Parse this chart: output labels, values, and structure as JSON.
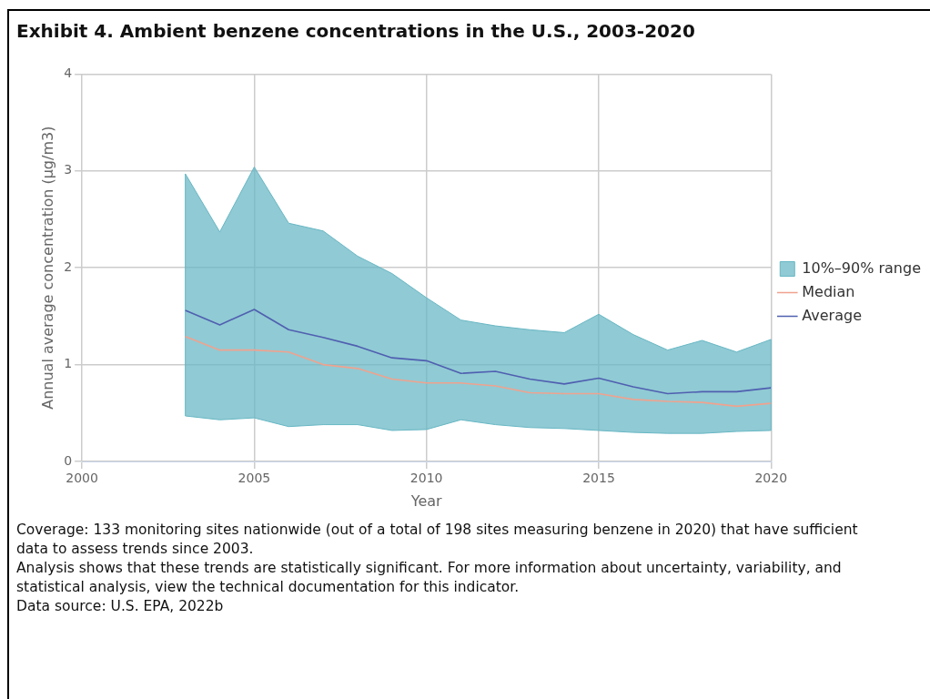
{
  "chart_data": {
    "type": "line",
    "title": "Exhibit 4. Ambient benzene concentrations in the U.S., 2003-2020",
    "xlabel": "Year",
    "ylabel": "Annual average concentration (µg/m3)",
    "x": [
      2003,
      2004,
      2005,
      2006,
      2007,
      2008,
      2009,
      2010,
      2011,
      2012,
      2013,
      2014,
      2015,
      2016,
      2017,
      2018,
      2019,
      2020
    ],
    "xlim": [
      2000,
      2020
    ],
    "xticks": [
      2000,
      2005,
      2010,
      2015,
      2020
    ],
    "ylim": [
      0,
      4
    ],
    "yticks": [
      0,
      1,
      2,
      3,
      4
    ],
    "grid": true,
    "legend": "right",
    "marker": "none",
    "series": [
      {
        "name": "10%–90% range",
        "type": "area",
        "color": "#67b7c4",
        "lower": [
          0.47,
          0.43,
          0.45,
          0.36,
          0.38,
          0.38,
          0.32,
          0.33,
          0.43,
          0.38,
          0.35,
          0.34,
          0.32,
          0.3,
          0.29,
          0.29,
          0.31,
          0.32
        ],
        "upper": [
          2.97,
          2.37,
          3.04,
          2.46,
          2.38,
          2.12,
          1.94,
          1.69,
          1.46,
          1.4,
          1.36,
          1.33,
          1.52,
          1.31,
          1.15,
          1.25,
          1.13,
          1.26
        ],
        "values": [
          null,
          null,
          null,
          null,
          null,
          null,
          null,
          null,
          null,
          null,
          null,
          null,
          null,
          null,
          null,
          null,
          null,
          null
        ]
      },
      {
        "name": "Median",
        "color": "#f0a28e",
        "values": [
          1.29,
          1.15,
          1.15,
          1.13,
          1.0,
          0.96,
          0.85,
          0.81,
          0.81,
          0.78,
          0.71,
          0.7,
          0.7,
          0.64,
          0.62,
          0.61,
          0.57,
          0.6
        ]
      },
      {
        "name": "Average",
        "color": "#4f5fb0",
        "values": [
          1.56,
          1.41,
          1.57,
          1.36,
          1.28,
          1.19,
          1.07,
          1.04,
          0.91,
          0.93,
          0.85,
          0.8,
          0.86,
          0.77,
          0.7,
          0.72,
          0.72,
          0.76
        ]
      }
    ],
    "annotations": [
      "Coverage: 133 monitoring sites nationwide (out of a total of 198 sites measuring benzene in 2020) that have sufficient data to assess trends since 2003.",
      "Analysis shows that these trends are statistically significant. For more information about uncertainty, variability, and statistical analysis, view the technical documentation for this indicator.",
      "Data source: U.S. EPA, 2022b"
    ]
  }
}
